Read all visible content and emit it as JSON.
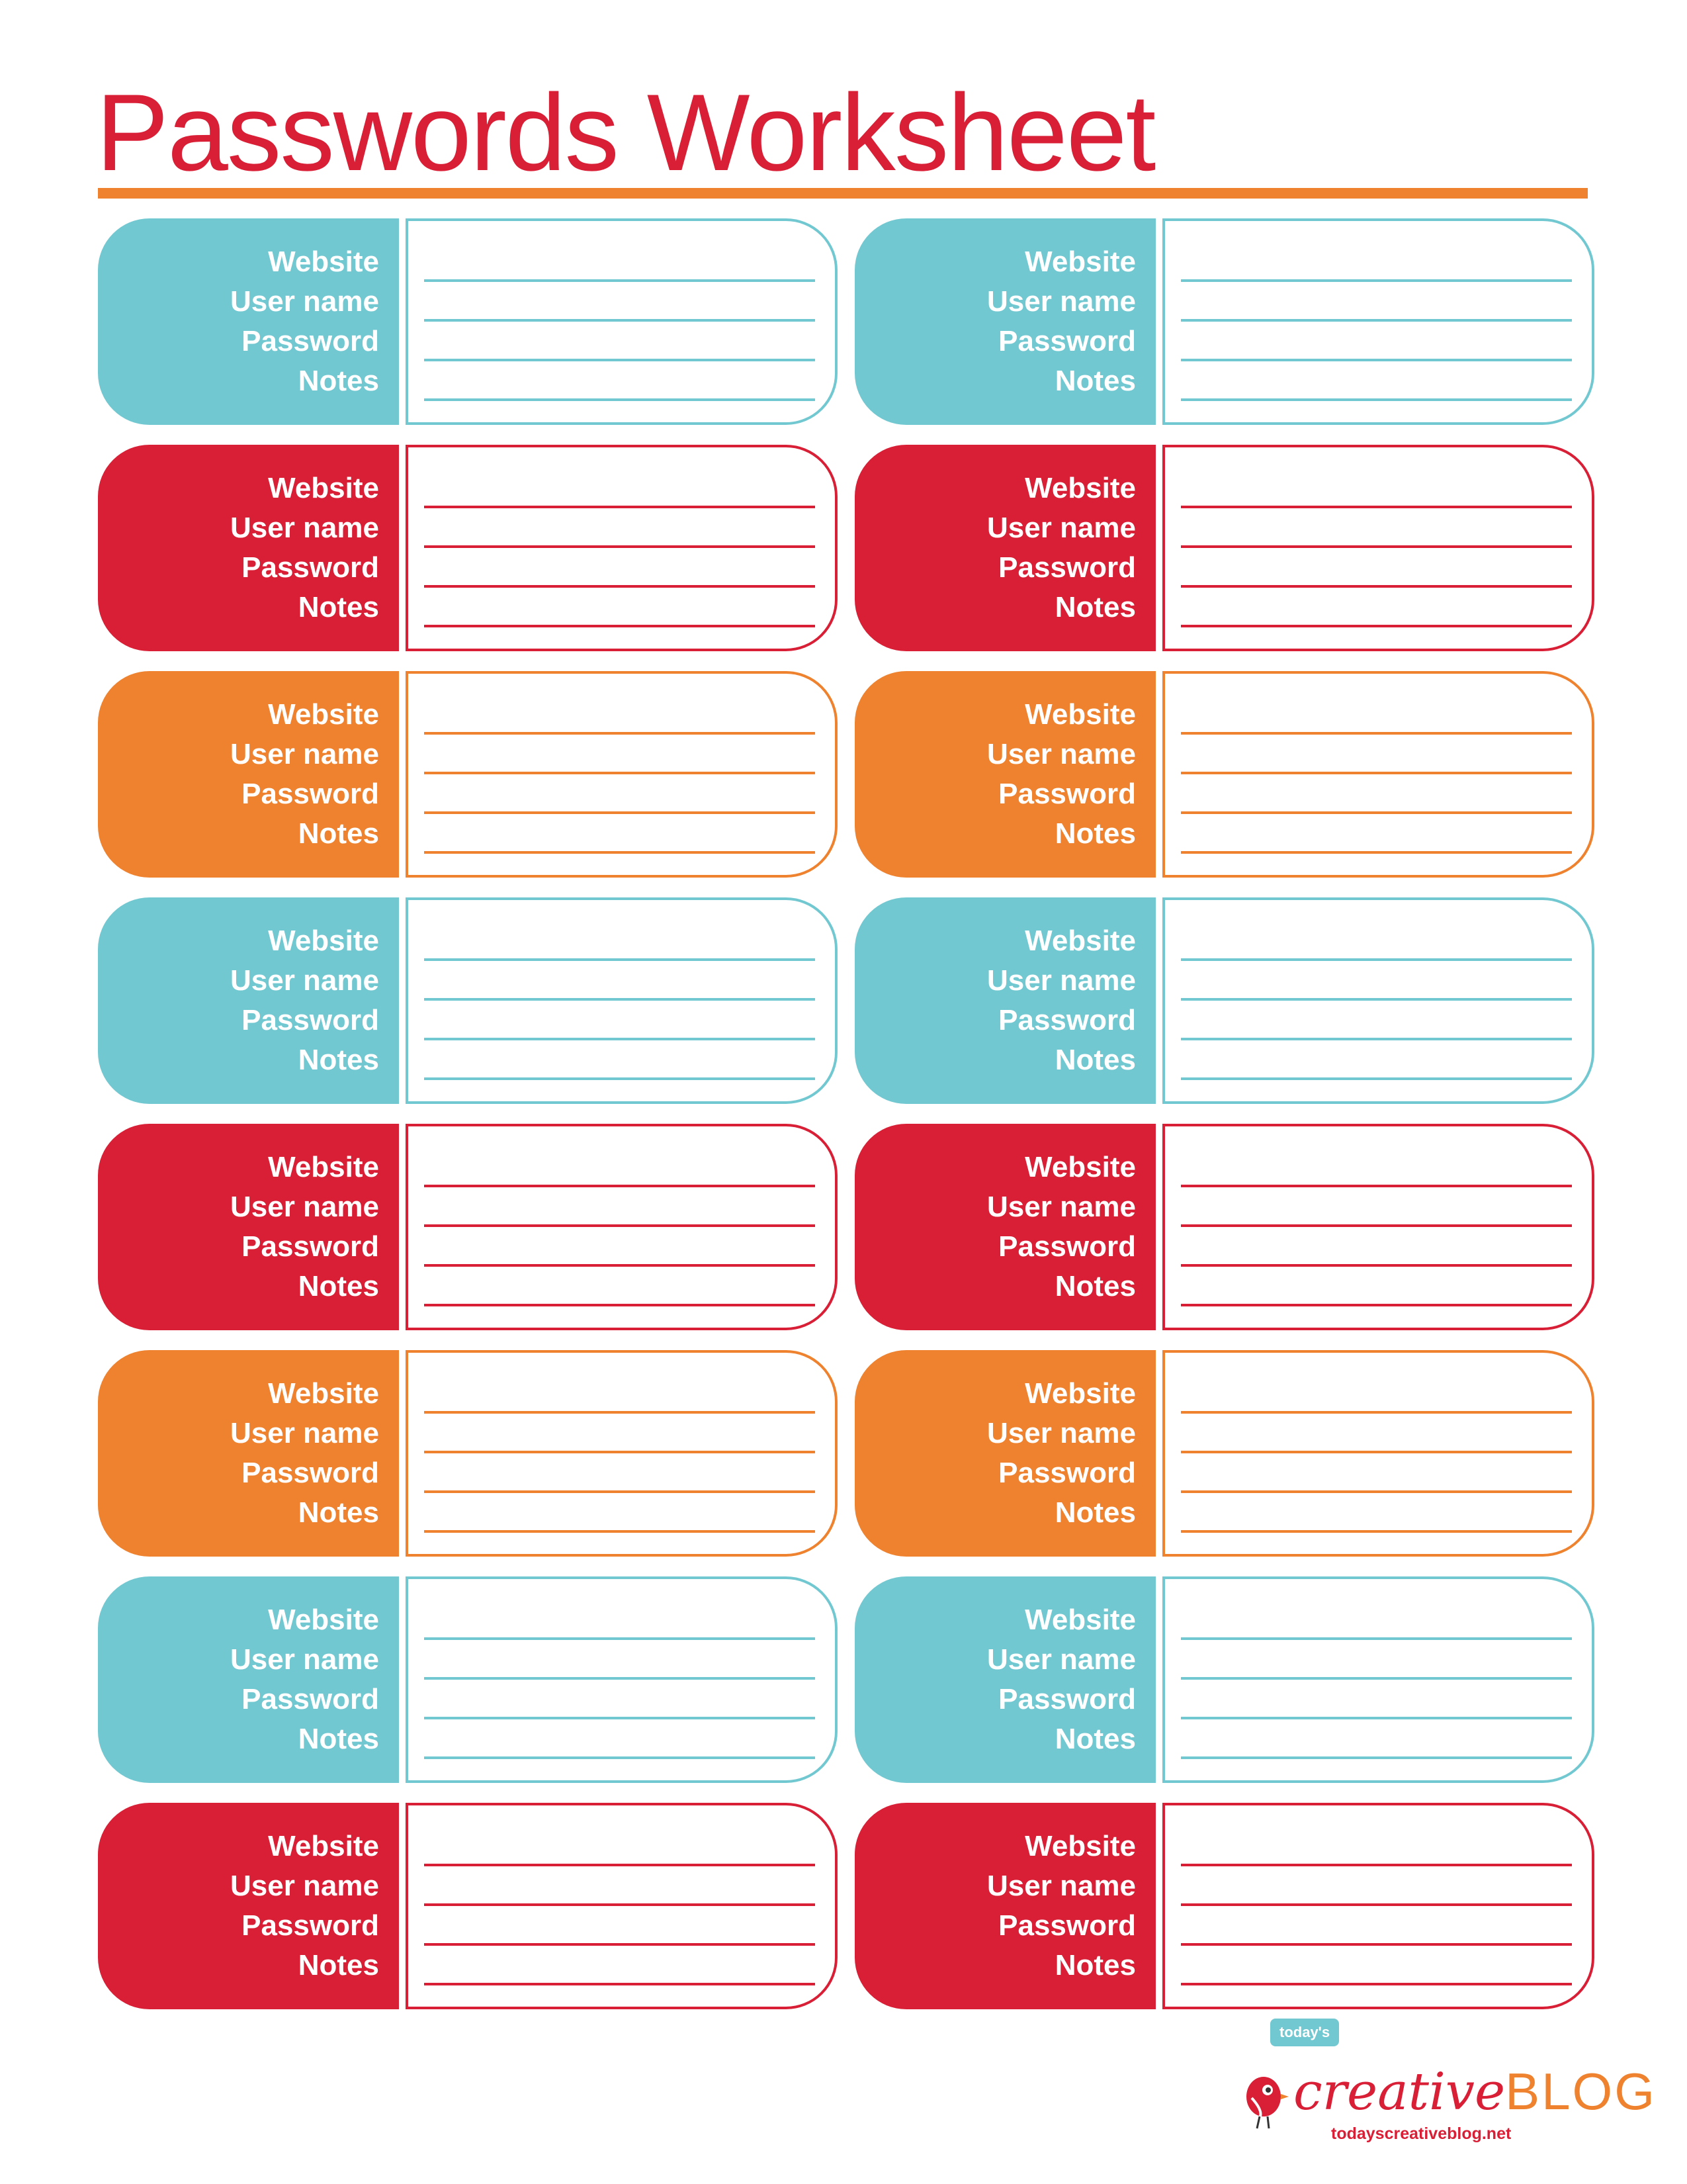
{
  "title": "Passwords Worksheet",
  "labels": [
    "Website",
    "User name",
    "Password",
    "Notes"
  ],
  "colors": {
    "teal": "#72c8d1",
    "red": "#d91f36",
    "orange": "#ee822e"
  },
  "card_rows": [
    "teal",
    "red",
    "orange",
    "teal",
    "red",
    "orange",
    "teal",
    "red"
  ],
  "cards_per_row": 2,
  "logo": {
    "badge": "today's",
    "word_creative": "creative",
    "word_blog": "BLOG",
    "url": "todayscreativeblog.net",
    "icon": "bird-icon"
  }
}
